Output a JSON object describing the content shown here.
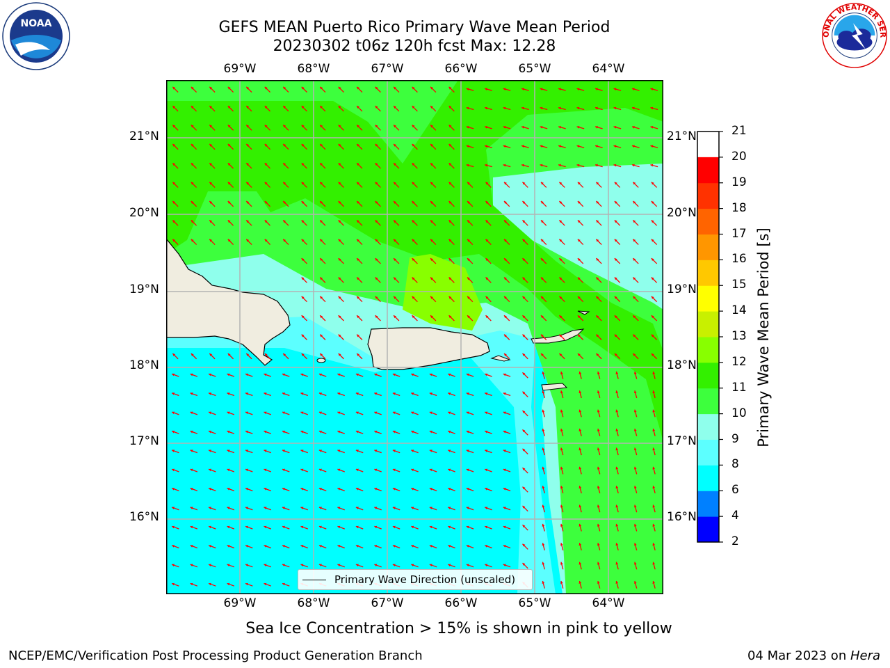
{
  "title_line1": "GEFS MEAN Puerto Rico Primary Wave Mean Period",
  "title_line2": "20230302 t06z 120h fcst   Max: 12.28",
  "map": {
    "lon_labels": [
      "69°W",
      "68°W",
      "67°W",
      "66°W",
      "65°W",
      "64°W"
    ],
    "lat_labels": [
      "21°N",
      "20°N",
      "19°N",
      "18°N",
      "17°N",
      "16°N"
    ],
    "land_color": "#f0ede0",
    "grid_color": "#b3b3b3",
    "arrow_color": "#ff0000"
  },
  "colorbar": {
    "label": "Primary Wave Mean Period [s]",
    "ticks": [
      "2",
      "4",
      "6",
      "8",
      "9",
      "10",
      "11",
      "12",
      "13",
      "14",
      "15",
      "16",
      "17",
      "18",
      "19",
      "20",
      "21"
    ],
    "colors": [
      "#0000ff",
      "#0080ff",
      "#00ffff",
      "#5cffff",
      "#8fffec",
      "#3dff3d",
      "#33f000",
      "#88ff00",
      "#c8f000",
      "#ffff00",
      "#ffc800",
      "#ff9600",
      "#ff6400",
      "#ff3200",
      "#ff0000"
    ]
  },
  "legend_label": "Primary Wave Direction (unscaled)",
  "caption": "Sea Ice Concentration > 15% is shown in pink to yellow",
  "footer_left": "NCEP/EMC/Verification Post Processing Product Generation Branch",
  "footer_right_date": "04 Mar 2023 on ",
  "footer_right_host": "Hera",
  "logos": {
    "noaa_text": "NOAA",
    "nws_text": "NATIONAL WEATHER SERVICE"
  }
}
